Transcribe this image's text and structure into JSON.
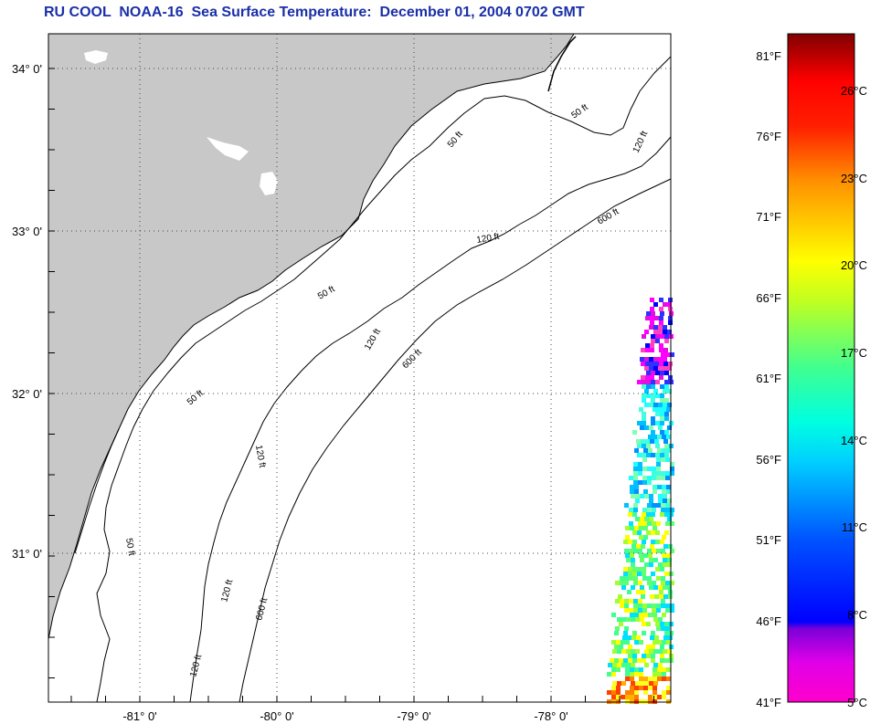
{
  "title": "RU COOL  NOAA-16  Sea Surface Temperature:  December 01, 2004 0702 GMT",
  "map": {
    "lat_ticks": [
      "34° 0'",
      "33° 0'",
      "32° 0'",
      "31° 0'"
    ],
    "lon_ticks": [
      "-81° 0'",
      "-80° 0'",
      "-79° 0'",
      "-78° 0'"
    ],
    "land_color": "#c8c8c8",
    "contour_labels": [
      "50 ft",
      "50 ft",
      "50 ft",
      "50 ft",
      "50 ft",
      "120 ft",
      "120 ft",
      "120 ft",
      "120 ft",
      "120 ft",
      "120 ft",
      "600 ft",
      "600 ft",
      "600 ft"
    ]
  },
  "colorbar": {
    "fahrenheit_labels": [
      "81°F",
      "76°F",
      "71°F",
      "66°F",
      "61°F",
      "56°F",
      "51°F",
      "46°F",
      "41°F"
    ],
    "celsius_labels": [
      "26°C",
      "23°C",
      "20°C",
      "17°C",
      "14°C",
      "11°C",
      "8°C",
      "5°C"
    ],
    "colors": [
      "#8b0000",
      "#ff0000",
      "#ff8000",
      "#ffff00",
      "#80ff40",
      "#00ffff",
      "#0080ff",
      "#0000ff",
      "#8000c0",
      "#ff00ff"
    ]
  }
}
